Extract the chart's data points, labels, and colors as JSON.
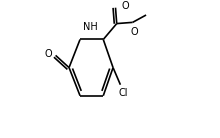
{
  "background": "#ffffff",
  "bond_color": "#000000",
  "text_color": "#000000",
  "lw": 1.2,
  "fs": 7.0,
  "xlim": [
    0.0,
    1.15
  ],
  "ylim": [
    -0.05,
    1.05
  ]
}
